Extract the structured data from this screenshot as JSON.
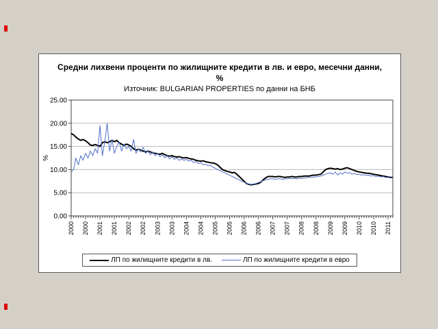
{
  "page": {
    "background": "#d4d0c8",
    "marker_color": "#dd0806"
  },
  "chart": {
    "title": "Средни лихвени проценти по жилищните кредити в лв. и евро, месечни данни, %",
    "subtitle": "Източник: BULGARIAN PROPERTIES по данни на БНБ",
    "y_axis_title": "%"
  },
  "chart_data": {
    "type": "line",
    "title": "Средни лихвени проценти по жилищните кредити в лв. и евро, месечни данни, %",
    "subtitle": "Източник: BULGARIAN PROPERTIES по данни на БНБ",
    "xlabel": "",
    "ylabel": "%",
    "ylim": [
      0,
      25
    ],
    "y_ticks": [
      25,
      20,
      15,
      10,
      5,
      0
    ],
    "y_tick_labels": [
      "25.00",
      "20.00",
      "15.00",
      "10.00",
      "5.00",
      "0.00"
    ],
    "grid": true,
    "gridline_color": "#b8b8b8",
    "axis_color": "#404040",
    "legend_position": "bottom",
    "x_unit": "month",
    "x_start": "2000-01",
    "x_end": "2011-03",
    "x_label_every": 6,
    "x_tick_labels": [
      "2000",
      "2000",
      "2001",
      "2001",
      "2002",
      "2002",
      "2003",
      "2003",
      "2004",
      "2004",
      "2005",
      "2005",
      "2006",
      "2006",
      "2007",
      "2007",
      "2008",
      "2008",
      "2009",
      "2009",
      "2010",
      "2010",
      "2011"
    ],
    "series": [
      {
        "name": "ЛП по жилищните кредити в лв.",
        "color": "#000000",
        "width": 2,
        "values": [
          17.8,
          17.5,
          17.0,
          16.6,
          16.3,
          16.5,
          16.2,
          15.8,
          15.3,
          15.2,
          15.4,
          15.2,
          15.0,
          15.8,
          16.0,
          15.8,
          16.0,
          16.3,
          16.0,
          16.3,
          15.8,
          15.5,
          15.2,
          15.5,
          15.3,
          15.0,
          14.5,
          14.2,
          14.4,
          14.2,
          14.0,
          13.8,
          14.0,
          13.8,
          13.6,
          13.5,
          13.4,
          13.3,
          13.5,
          13.2,
          13.0,
          12.9,
          13.0,
          12.8,
          12.7,
          12.8,
          12.6,
          12.5,
          12.6,
          12.4,
          12.3,
          12.2,
          12.0,
          11.9,
          11.8,
          11.9,
          11.7,
          11.6,
          11.5,
          11.4,
          11.3,
          11.0,
          10.5,
          10.0,
          9.8,
          9.6,
          9.5,
          9.3,
          9.4,
          9.0,
          8.5,
          8.0,
          7.5,
          7.0,
          6.8,
          6.7,
          6.8,
          6.9,
          7.0,
          7.3,
          7.8,
          8.2,
          8.5,
          8.5,
          8.5,
          8.4,
          8.5,
          8.5,
          8.4,
          8.3,
          8.4,
          8.4,
          8.5,
          8.4,
          8.4,
          8.5,
          8.5,
          8.6,
          8.6,
          8.6,
          8.7,
          8.8,
          8.8,
          8.9,
          9.0,
          9.5,
          10.0,
          10.2,
          10.3,
          10.2,
          10.1,
          10.2,
          10.0,
          10.1,
          10.3,
          10.4,
          10.2,
          10.0,
          9.8,
          9.6,
          9.5,
          9.4,
          9.3,
          9.2,
          9.2,
          9.1,
          9.0,
          8.9,
          8.8,
          8.7,
          8.6,
          8.5,
          8.4,
          8.3,
          8.3
        ]
      },
      {
        "name": "ЛП по жилищните кредити в евро",
        "color": "#4f6fc8",
        "width": 1,
        "values": [
          9.5,
          10.0,
          12.5,
          11.0,
          13.0,
          12.0,
          13.5,
          12.5,
          14.0,
          13.0,
          14.5,
          13.5,
          19.5,
          13.0,
          16.0,
          20.0,
          14.0,
          16.5,
          13.5,
          15.0,
          16.0,
          14.0,
          15.5,
          14.5,
          15.0,
          14.0,
          16.5,
          13.5,
          14.5,
          13.8,
          14.8,
          13.5,
          14.0,
          13.2,
          13.8,
          13.0,
          13.5,
          12.8,
          13.2,
          12.5,
          13.0,
          12.3,
          12.8,
          12.2,
          12.5,
          12.0,
          12.3,
          12.0,
          12.2,
          11.8,
          12.0,
          11.5,
          11.8,
          11.3,
          11.5,
          11.0,
          11.2,
          10.8,
          11.0,
          10.5,
          10.3,
          10.0,
          9.8,
          9.5,
          9.3,
          9.0,
          8.8,
          8.5,
          8.3,
          8.0,
          7.8,
          7.5,
          7.3,
          7.0,
          6.9,
          6.8,
          6.9,
          7.0,
          7.2,
          7.4,
          7.6,
          7.8,
          7.9,
          8.0,
          8.0,
          7.9,
          8.0,
          8.0,
          7.9,
          8.0,
          8.0,
          8.1,
          8.0,
          8.1,
          8.0,
          8.1,
          8.1,
          8.2,
          8.2,
          8.3,
          8.3,
          8.4,
          8.4,
          8.5,
          8.6,
          8.8,
          9.0,
          9.2,
          9.3,
          9.0,
          9.5,
          8.8,
          9.3,
          9.0,
          9.5,
          9.2,
          9.4,
          9.0,
          9.2,
          8.9,
          9.0,
          8.8,
          8.9,
          8.7,
          8.8,
          8.6,
          8.7,
          8.5,
          8.6,
          8.4,
          8.5,
          8.3,
          8.3,
          8.2,
          8.2
        ]
      }
    ]
  }
}
